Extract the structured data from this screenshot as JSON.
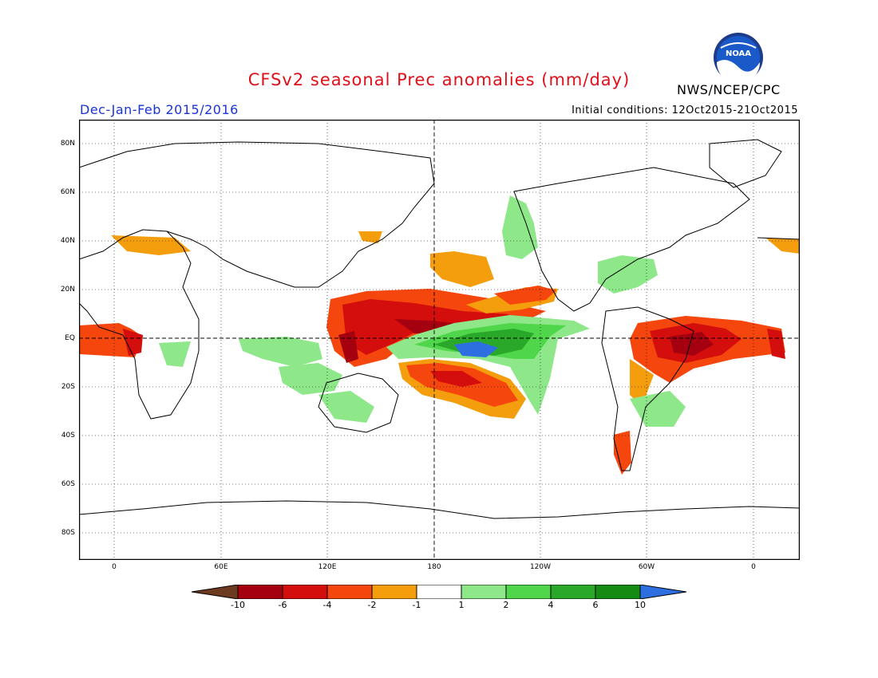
{
  "header": {
    "title": "CFSv2 seasonal Prec anomalies (mm/day)",
    "season": "Dec-Jan-Feb 2015/2016",
    "initial_conditions": "Initial conditions: 12Oct2015-21Oct2015",
    "agency": "NWS/NCEP/CPC",
    "logo_text": "NOAA"
  },
  "axes": {
    "lat_labels": [
      "80N",
      "60N",
      "40N",
      "20N",
      "EQ",
      "20S",
      "40S",
      "60S",
      "80S"
    ],
    "lon_labels": [
      "0",
      "60E",
      "120E",
      "180",
      "120W",
      "60W",
      "0"
    ]
  },
  "colorbar": {
    "labels": [
      "-10",
      "-6",
      "-4",
      "-2",
      "-1",
      "1",
      "2",
      "4",
      "6",
      "10"
    ],
    "colors": [
      "#6b3a1f",
      "#a50010",
      "#d40d0d",
      "#f5470d",
      "#f59e0d",
      "#ffffff",
      "#8ee88a",
      "#4fd64a",
      "#2aa82a",
      "#148c14",
      "#2d6fe0"
    ]
  },
  "colors": {
    "title": "#e0101a",
    "season": "#1a33d6",
    "land_outline": "#000000"
  }
}
